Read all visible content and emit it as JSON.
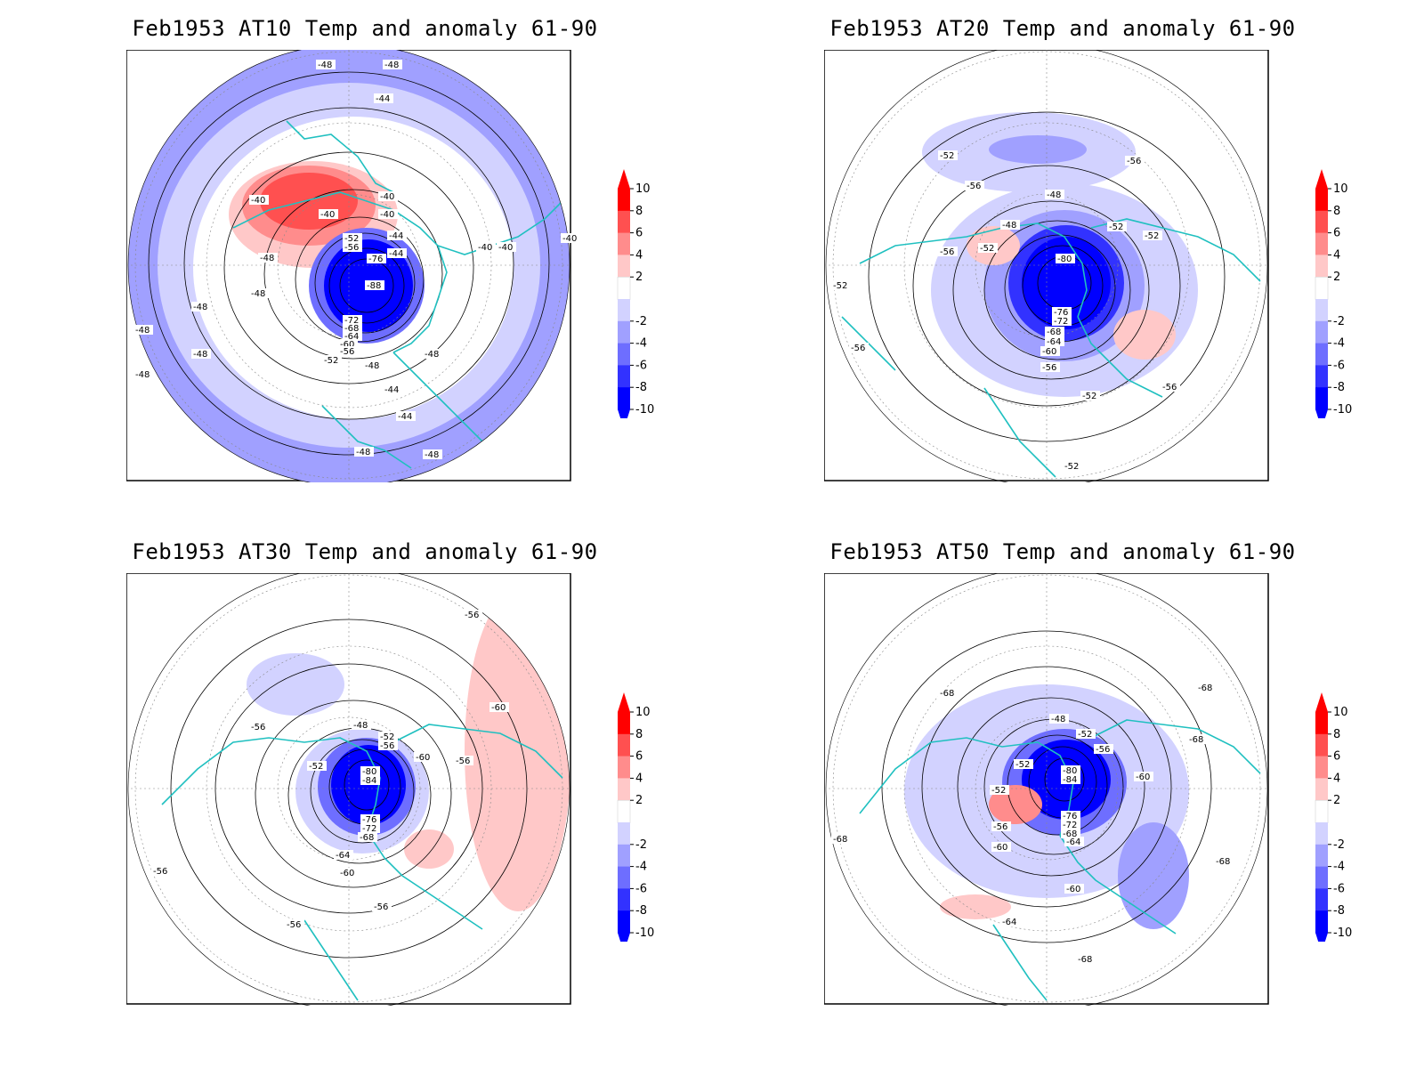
{
  "colorbar": {
    "labels": [
      "10",
      "8",
      "6",
      "4",
      "2",
      "-2",
      "-4",
      "-6",
      "-8",
      "-10"
    ],
    "colors": [
      "#ff0000",
      "#ff5050",
      "#ff8c8c",
      "#ffc8c8",
      "#ffffff",
      "#d2d2ff",
      "#a0a0ff",
      "#6e6eff",
      "#3232ff",
      "#0000ff"
    ]
  },
  "panels": [
    {
      "title": "Feb1953 AT10 Temp and anomaly 61-90",
      "contour_labels": [
        "-48",
        "-48",
        "-44",
        "-40",
        "-40",
        "-40",
        "-40",
        "-44",
        "-44",
        "-40",
        "-48",
        "-48",
        "-48",
        "-48",
        "-48",
        "-52",
        "-56",
        "-76",
        "-88",
        "-72",
        "-68",
        "-64",
        "-60",
        "-56",
        "-52",
        "-48",
        "-44",
        "-44",
        "-48",
        "-48",
        "-48",
        "-40",
        "-40",
        "-48"
      ]
    },
    {
      "title": "Feb1953 AT20 Temp and anomaly 61-90",
      "contour_labels": [
        "-52",
        "-56",
        "-56",
        "-48",
        "-48",
        "-52",
        "-56",
        "-52",
        "-52",
        "-52",
        "-80",
        "-76",
        "-72",
        "-68",
        "-64",
        "-60",
        "-56",
        "-52",
        "-56",
        "-52",
        "-56"
      ]
    },
    {
      "title": "Feb1953 AT30 Temp and anomaly 61-90",
      "contour_labels": [
        "-56",
        "-60",
        "-48",
        "-56",
        "-52",
        "-60",
        "-56",
        "-52",
        "-56",
        "-80",
        "-84",
        "-76",
        "-72",
        "-68",
        "-64",
        "-60",
        "-56",
        "-56",
        "-56"
      ]
    },
    {
      "title": "Feb1953 AT50 Temp and anomaly 61-90",
      "contour_labels": [
        "-68",
        "-68",
        "-48",
        "-52",
        "-56",
        "-68",
        "-52",
        "-52",
        "-60",
        "-80",
        "-84",
        "-76",
        "-72",
        "-68",
        "-64",
        "-56",
        "-60",
        "-68",
        "-68",
        "-60",
        "-64",
        "-68"
      ]
    }
  ]
}
